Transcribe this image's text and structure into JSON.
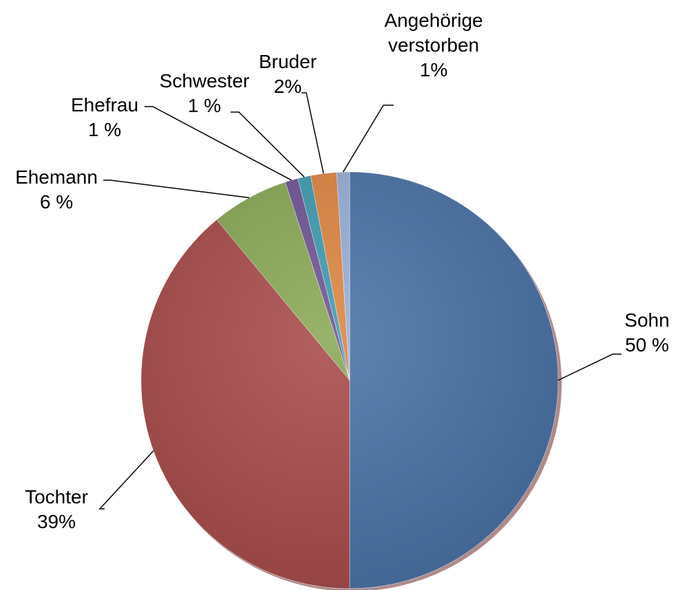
{
  "chart_data": {
    "type": "pie",
    "categories": [
      "Sohn",
      "Tochter",
      "Ehemann",
      "Ehefrau",
      "Schwester",
      "Bruder",
      "Angehörige verstorben"
    ],
    "values": [
      50,
      39,
      6,
      1,
      1,
      2,
      1
    ],
    "value_labels": [
      "50 %",
      "39%",
      "6 %",
      "1 %",
      "1 %",
      "2%",
      "1%"
    ],
    "colors": [
      "#4a72a6",
      "#a84b4a",
      "#8aa856",
      "#6f5494",
      "#3f9bb0",
      "#de8542",
      "#97aed5"
    ]
  }
}
